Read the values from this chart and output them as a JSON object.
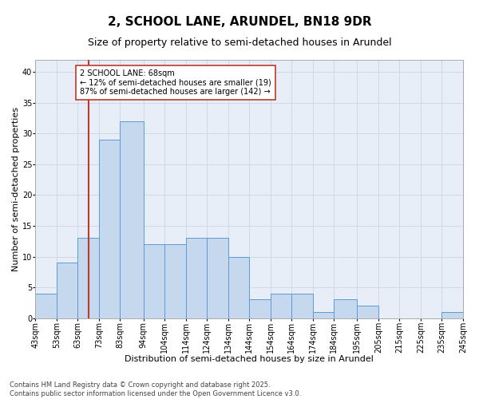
{
  "title": "2, SCHOOL LANE, ARUNDEL, BN18 9DR",
  "subtitle": "Size of property relative to semi-detached houses in Arundel",
  "xlabel": "Distribution of semi-detached houses by size in Arundel",
  "ylabel": "Number of semi-detached properties",
  "bins": [
    43,
    53,
    63,
    73,
    83,
    94,
    104,
    114,
    124,
    134,
    144,
    154,
    164,
    174,
    184,
    195,
    205,
    215,
    225,
    235,
    245
  ],
  "bin_labels": [
    "43sqm",
    "53sqm",
    "63sqm",
    "73sqm",
    "83sqm",
    "94sqm",
    "104sqm",
    "114sqm",
    "124sqm",
    "134sqm",
    "144sqm",
    "154sqm",
    "164sqm",
    "174sqm",
    "184sqm",
    "195sqm",
    "205sqm",
    "215sqm",
    "225sqm",
    "235sqm",
    "245sqm"
  ],
  "values": [
    4,
    9,
    13,
    29,
    32,
    12,
    12,
    13,
    13,
    10,
    3,
    4,
    4,
    1,
    3,
    2,
    0,
    0,
    0,
    1
  ],
  "bar_color": "#c5d8ed",
  "bar_edge_color": "#5b9bd5",
  "property_value": 68,
  "vline_color": "#c0392b",
  "annotation_text": "2 SCHOOL LANE: 68sqm\n← 12% of semi-detached houses are smaller (19)\n87% of semi-detached houses are larger (142) →",
  "annotation_box_color": "#c0392b",
  "ylim": [
    0,
    42
  ],
  "yticks": [
    0,
    5,
    10,
    15,
    20,
    25,
    30,
    35,
    40
  ],
  "grid_color": "#d0d8e8",
  "background_color": "#e8eef8",
  "footer_text": "Contains HM Land Registry data © Crown copyright and database right 2025.\nContains public sector information licensed under the Open Government Licence v3.0.",
  "title_fontsize": 11,
  "subtitle_fontsize": 9,
  "axis_label_fontsize": 8,
  "tick_fontsize": 7,
  "annotation_fontsize": 7,
  "footer_fontsize": 6
}
